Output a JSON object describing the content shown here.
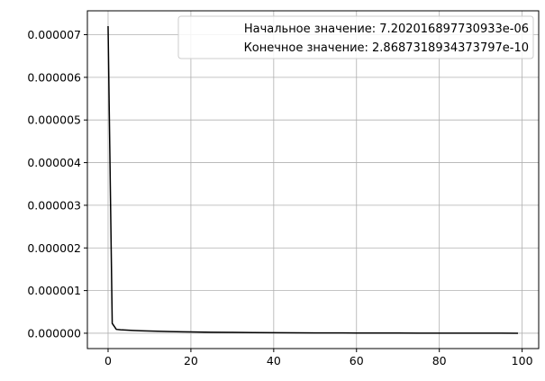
{
  "chart_data": {
    "type": "line",
    "title": "",
    "xlabel": "",
    "ylabel": "",
    "xlim": [
      -5,
      104
    ],
    "ylim": [
      -3.6e-07,
      7.56e-06
    ],
    "x_ticks": [
      0,
      20,
      40,
      60,
      80,
      100
    ],
    "x_tick_labels": [
      "0",
      "20",
      "40",
      "60",
      "80",
      "100"
    ],
    "y_ticks": [
      0,
      1e-06,
      2e-06,
      3e-06,
      4e-06,
      5e-06,
      6e-06,
      7e-06
    ],
    "y_tick_labels": [
      "0.000000",
      "0.000001",
      "0.000002",
      "0.000003",
      "0.000004",
      "0.000005",
      "0.000006",
      "0.000007"
    ],
    "grid": true,
    "legend_position": "top-right",
    "legend": [
      "Начальное значение: 7.202016897730933e-06",
      "Конечное значение: 2.8687318934373797e-10"
    ],
    "series": [
      {
        "color": "#000000",
        "x": [
          0,
          1,
          2,
          3,
          4,
          5,
          6,
          8,
          10,
          12,
          15,
          18,
          20,
          25,
          30,
          35,
          40,
          45,
          50,
          55,
          60,
          65,
          70,
          75,
          80,
          85,
          90,
          95,
          99
        ],
        "y": [
          7.202016897730933e-06,
          2.3e-07,
          9e-08,
          8e-08,
          7.5e-08,
          7e-08,
          6.5e-08,
          5.8e-08,
          5.2e-08,
          4.6e-08,
          3.9e-08,
          3.3e-08,
          3e-08,
          2.4e-08,
          1.9e-08,
          1.55e-08,
          1.25e-08,
          1e-08,
          8e-09,
          6.5e-09,
          5e-09,
          4e-09,
          3e-09,
          2.2e-09,
          1.6e-09,
          1.1e-09,
          7e-10,
          4.5e-10,
          2.8687318934373797e-10
        ]
      }
    ]
  }
}
